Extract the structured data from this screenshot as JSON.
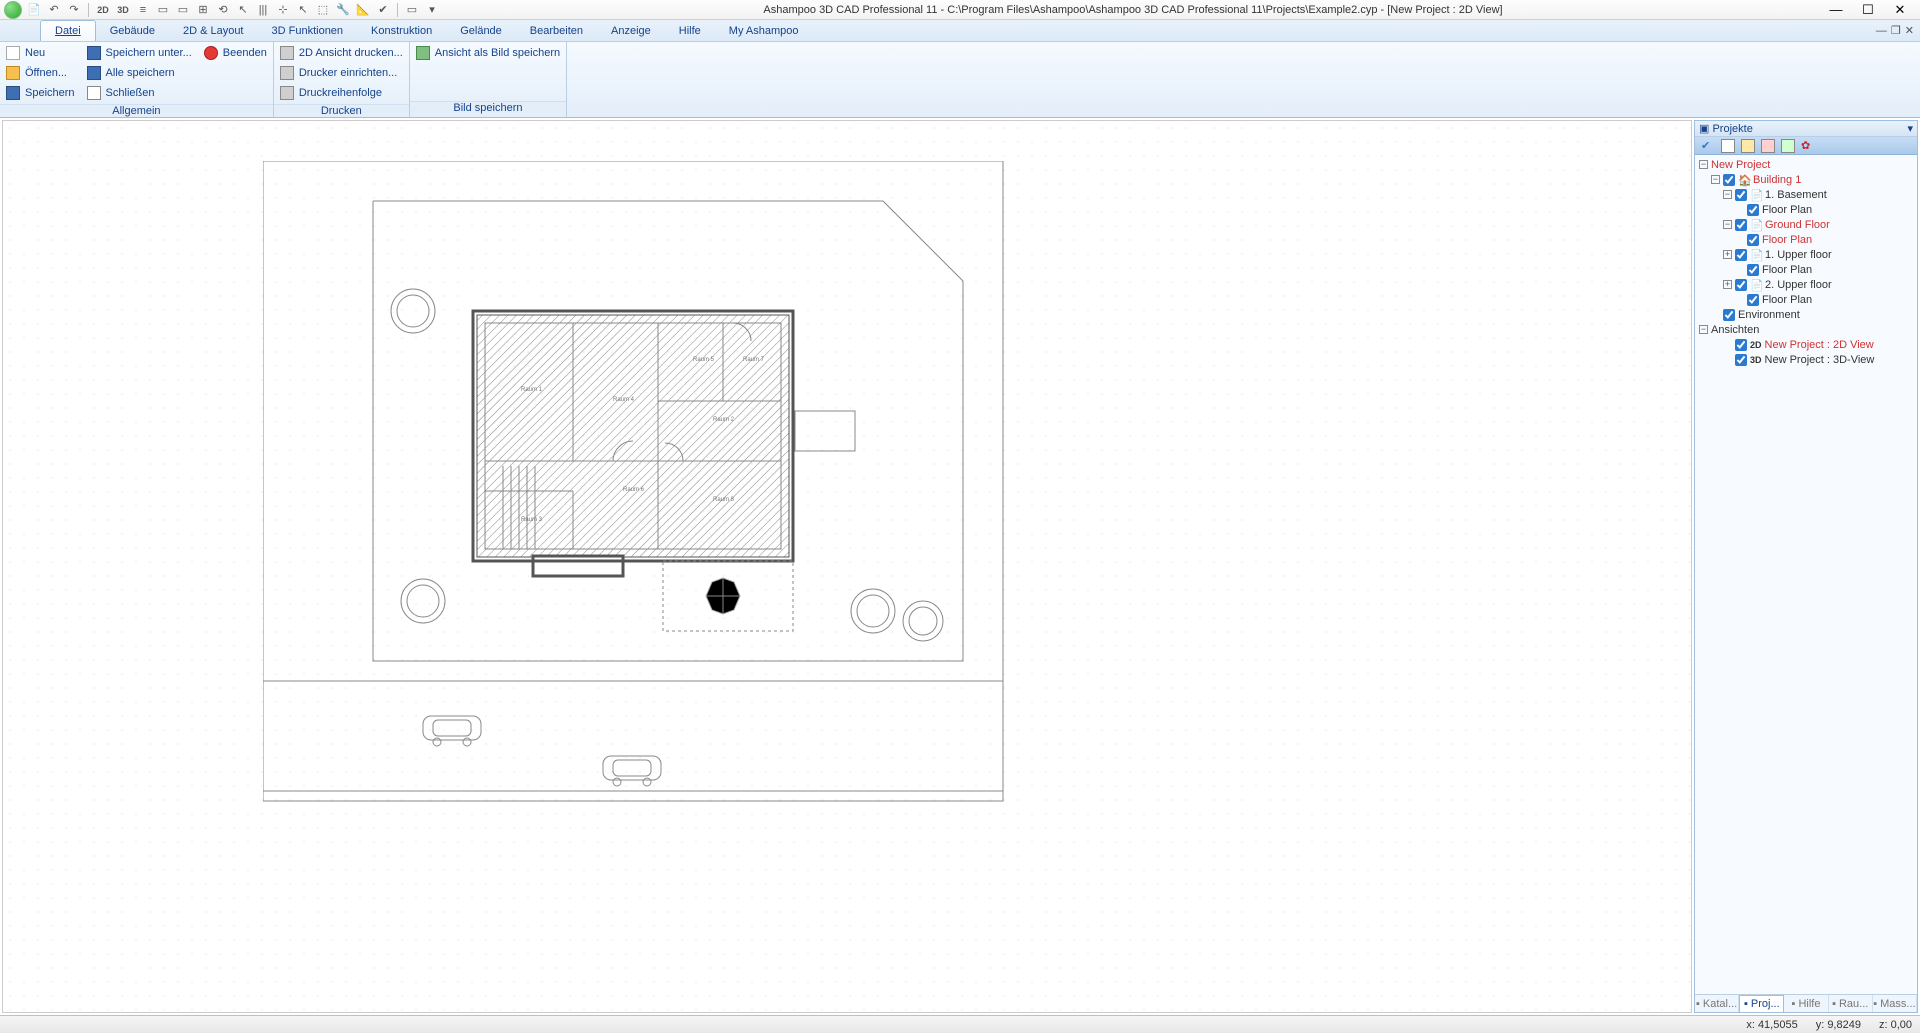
{
  "app": {
    "title": "Ashampoo 3D CAD Professional 11 - C:\\Program Files\\Ashampoo\\Ashampoo 3D CAD Professional 11\\Projects\\Example2.cyp - [New Project : 2D View]"
  },
  "menu": {
    "tabs": [
      "Datei",
      "Gebäude",
      "2D & Layout",
      "3D Funktionen",
      "Konstruktion",
      "Gelände",
      "Bearbeiten",
      "Anzeige",
      "Hilfe",
      "My Ashampoo"
    ],
    "active": 0
  },
  "ribbon": {
    "groups": [
      {
        "label": "Allgemein",
        "cols": [
          [
            {
              "icon": "i-new",
              "text": "Neu"
            },
            {
              "icon": "i-open",
              "text": "Öffnen..."
            },
            {
              "icon": "i-save",
              "text": "Speichern"
            }
          ],
          [
            {
              "icon": "i-saveas",
              "text": "Speichern unter..."
            },
            {
              "icon": "i-saveall",
              "text": "Alle speichern"
            },
            {
              "icon": "i-close",
              "text": "Schließen"
            }
          ],
          [
            {
              "icon": "i-quit",
              "text": "Beenden"
            }
          ]
        ]
      },
      {
        "label": "Drucken",
        "cols": [
          [
            {
              "icon": "i-print",
              "text": "2D Ansicht drucken..."
            },
            {
              "icon": "i-print",
              "text": "Drucker einrichten..."
            },
            {
              "icon": "i-print",
              "text": "Druckreihenfolge"
            }
          ]
        ]
      },
      {
        "label": "Bild speichern",
        "cols": [
          [
            {
              "icon": "i-img",
              "text": "Ansicht als Bild speichern"
            }
          ]
        ]
      }
    ]
  },
  "projects": {
    "title": "Projekte",
    "tree": [
      {
        "ind": 0,
        "exp": "-",
        "chk": false,
        "ico": "",
        "text": "New Project",
        "red": true
      },
      {
        "ind": 1,
        "exp": "-",
        "chk": true,
        "ico": "🏠",
        "text": "Building 1",
        "red": true
      },
      {
        "ind": 2,
        "exp": "-",
        "chk": true,
        "ico": "📄",
        "text": "1. Basement"
      },
      {
        "ind": 3,
        "exp": "",
        "chk": true,
        "ico": "",
        "text": "Floor Plan"
      },
      {
        "ind": 2,
        "exp": "-",
        "chk": true,
        "ico": "📄",
        "text": "Ground Floor",
        "red": true
      },
      {
        "ind": 3,
        "exp": "",
        "chk": true,
        "ico": "",
        "text": "Floor Plan",
        "red": true
      },
      {
        "ind": 2,
        "exp": "+",
        "chk": true,
        "ico": "📄",
        "text": "1. Upper floor"
      },
      {
        "ind": 3,
        "exp": "",
        "chk": true,
        "ico": "",
        "text": "Floor Plan"
      },
      {
        "ind": 2,
        "exp": "+",
        "chk": true,
        "ico": "📄",
        "text": "2. Upper floor"
      },
      {
        "ind": 3,
        "exp": "",
        "chk": true,
        "ico": "",
        "text": "Floor Plan"
      },
      {
        "ind": 1,
        "exp": "",
        "chk": true,
        "ico": "",
        "text": "Environment"
      },
      {
        "ind": 0,
        "exp": "-",
        "chk": false,
        "ico": "",
        "text": "Ansichten"
      },
      {
        "ind": 2,
        "exp": "",
        "chk": true,
        "ico": "",
        "badge": "2D",
        "text": "New Project : 2D View",
        "red": true
      },
      {
        "ind": 2,
        "exp": "",
        "chk": true,
        "ico": "",
        "badge": "3D",
        "text": "New Project : 3D-View"
      }
    ],
    "panelTabs": [
      {
        "label": "Katal..."
      },
      {
        "label": "Proj...",
        "active": true
      },
      {
        "label": "Hilfe"
      },
      {
        "label": "Rau..."
      },
      {
        "label": "Mass..."
      }
    ]
  },
  "status": {
    "x": "x: 41,5055",
    "y": "y: 9,8249",
    "z": "z: 0,00"
  },
  "qat_icons": [
    "📄",
    "↶",
    "↷",
    "·",
    "2D",
    "3D",
    "≡",
    "▭",
    "▭",
    "⊞",
    "⟲",
    "↖",
    "|||",
    "⊹",
    "↖",
    "⬚",
    "🔧",
    "📐",
    "✔",
    "·",
    "▭",
    "▾"
  ]
}
